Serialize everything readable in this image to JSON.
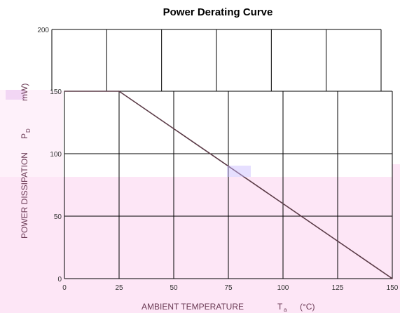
{
  "chart_data": {
    "type": "line",
    "title": "Power Derating Curve",
    "xlabel": {
      "main": "AMBIENT TEMPERATURE",
      "symbol": "T",
      "subscript": "a",
      "unit": "(°C)"
    },
    "ylabel": {
      "main": "POWER DISSIPATION",
      "symbol": "P",
      "subscript": "D",
      "unit": "mW)"
    },
    "x_ticks": [
      "0",
      "25",
      "50",
      "75",
      "100",
      "125",
      "150"
    ],
    "y_ticks": [
      "0",
      "50",
      "100",
      "150",
      "200"
    ],
    "xlim": [
      0,
      150
    ],
    "ylim": [
      0,
      200
    ],
    "grid": true,
    "series": [
      {
        "x": [
          0,
          25,
          150
        ],
        "y": [
          150,
          150,
          0
        ]
      }
    ]
  },
  "colors": {
    "line": "#5a3a46",
    "grid": "#000000",
    "shade": "#fde6f6",
    "label": "#6b3b55"
  }
}
